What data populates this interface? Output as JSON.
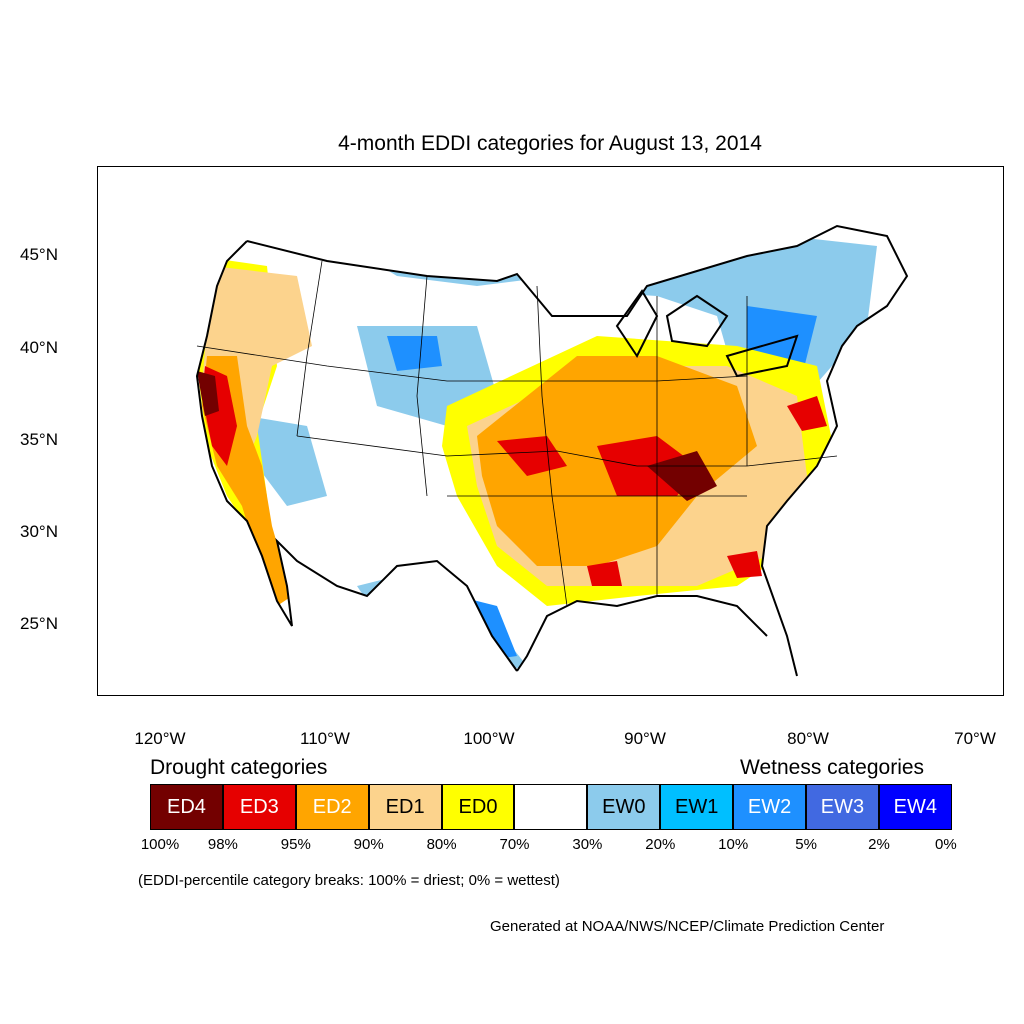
{
  "title": "4-month EDDI categories for August 13, 2014",
  "axes": {
    "lat_labels": [
      "45°N",
      "40°N",
      "35°N",
      "30°N",
      "25°N"
    ],
    "lon_labels": [
      "120°W",
      "110°W",
      "100°W",
      "90°W",
      "80°W",
      "70°W"
    ]
  },
  "legend": {
    "drought_heading": "Drought categories",
    "wetness_heading": "Wetness categories",
    "categories": [
      {
        "label": "ED4",
        "color": "#730000",
        "text_color": "#ffffff"
      },
      {
        "label": "ED3",
        "color": "#e60000",
        "text_color": "#ffffff"
      },
      {
        "label": "ED2",
        "color": "#ffa500",
        "text_color": "#ffffff"
      },
      {
        "label": "ED1",
        "color": "#fcd38d",
        "text_color": "#000000"
      },
      {
        "label": "ED0",
        "color": "#ffff00",
        "text_color": "#000000"
      },
      {
        "label": "",
        "color": "#ffffff",
        "text_color": "#000000"
      },
      {
        "label": "EW0",
        "color": "#8ccbec",
        "text_color": "#000000"
      },
      {
        "label": "EW1",
        "color": "#00bfff",
        "text_color": "#000000"
      },
      {
        "label": "EW2",
        "color": "#1e90ff",
        "text_color": "#ffffff"
      },
      {
        "label": "EW3",
        "color": "#4169e1",
        "text_color": "#ffffff"
      },
      {
        "label": "EW4",
        "color": "#0000ff",
        "text_color": "#ffffff"
      }
    ],
    "breaks": [
      "100%",
      "98%",
      "95%",
      "90%",
      "80%",
      "70%",
      "30%",
      "20%",
      "10%",
      "5%",
      "2%",
      "0%"
    ]
  },
  "note": "(EDDI-percentile category breaks: 100% = driest; 0% = wettest)",
  "credit": "Generated at NOAA/NWS/NCEP/Climate Prediction Center"
}
